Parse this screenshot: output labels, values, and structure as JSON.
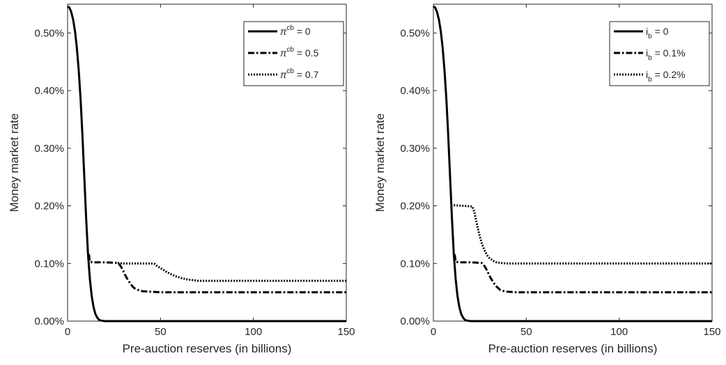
{
  "chart_data": [
    {
      "type": "line",
      "xlabel": "Pre-auction reserves (in billions)",
      "ylabel": "Money market rate",
      "xlim": [
        0,
        150
      ],
      "ylim": [
        0,
        0.55
      ],
      "xticks": [
        "0",
        "50",
        "100",
        "150"
      ],
      "yticks": [
        "0.00%",
        "0.10%",
        "0.20%",
        "0.30%",
        "0.40%",
        "0.50%"
      ],
      "legend_position": "top-right",
      "legend": [
        {
          "base": "π",
          "script": "cb",
          "script_type": "sup",
          "rest": " = 0"
        },
        {
          "base": "π",
          "script": "cb",
          "script_type": "sup",
          "rest": " = 0.5"
        },
        {
          "base": "π",
          "script": "cb",
          "script_type": "sup",
          "rest": " = 0.7"
        }
      ],
      "series": [
        {
          "style": "solid",
          "x": [
            0,
            1,
            2,
            3,
            4,
            5,
            6,
            7,
            8,
            9,
            10,
            11,
            12,
            13,
            14,
            15,
            16,
            17,
            18,
            20,
            25,
            150
          ],
          "y": [
            0.546,
            0.544,
            0.536,
            0.523,
            0.503,
            0.474,
            0.435,
            0.385,
            0.322,
            0.25,
            0.178,
            0.116,
            0.073,
            0.043,
            0.024,
            0.012,
            0.006,
            0.002,
            0.001,
            0,
            0,
            0
          ]
        },
        {
          "style": "dashdot",
          "x": [
            11.5,
            12,
            14,
            20,
            27,
            28,
            29,
            30,
            31,
            32,
            33,
            34,
            35,
            36,
            38,
            40,
            45,
            50,
            150
          ],
          "y": [
            0.116,
            0.103,
            0.102,
            0.102,
            0.101,
            0.098,
            0.093,
            0.087,
            0.08,
            0.074,
            0.069,
            0.064,
            0.06,
            0.057,
            0.054,
            0.052,
            0.051,
            0.05,
            0.05
          ]
        },
        {
          "style": "dotted",
          "x": [
            27,
            30,
            40,
            46,
            47,
            48,
            50,
            52,
            54,
            56,
            58,
            60,
            62,
            65,
            68,
            70,
            150
          ],
          "y": [
            0.101,
            0.1,
            0.1,
            0.1,
            0.099,
            0.096,
            0.092,
            0.088,
            0.084,
            0.081,
            0.078,
            0.076,
            0.074,
            0.072,
            0.071,
            0.07,
            0.07
          ]
        }
      ]
    },
    {
      "type": "line",
      "xlabel": "Pre-auction reserves (in billions)",
      "ylabel": "Money market rate",
      "xlim": [
        0,
        150
      ],
      "ylim": [
        0,
        0.55
      ],
      "xticks": [
        "0",
        "50",
        "100",
        "150"
      ],
      "yticks": [
        "0.00%",
        "0.10%",
        "0.20%",
        "0.30%",
        "0.40%",
        "0.50%"
      ],
      "legend_position": "top-right",
      "legend": [
        {
          "base": "i",
          "script": "b",
          "script_type": "sub",
          "rest": " = 0"
        },
        {
          "base": "i",
          "script": "b",
          "script_type": "sub",
          "rest": " = 0.1%"
        },
        {
          "base": "i",
          "script": "b",
          "script_type": "sub",
          "rest": " = 0.2%"
        }
      ],
      "series": [
        {
          "style": "solid",
          "x": [
            0,
            1,
            2,
            3,
            4,
            5,
            6,
            7,
            8,
            9,
            10,
            11,
            12,
            13,
            14,
            15,
            16,
            17,
            18,
            20,
            25,
            150
          ],
          "y": [
            0.546,
            0.544,
            0.536,
            0.523,
            0.503,
            0.474,
            0.435,
            0.385,
            0.322,
            0.25,
            0.178,
            0.116,
            0.073,
            0.043,
            0.024,
            0.012,
            0.006,
            0.002,
            0.001,
            0,
            0,
            0
          ]
        },
        {
          "style": "dashdot",
          "x": [
            11.5,
            12,
            14,
            20,
            26,
            27,
            28,
            29,
            30,
            31,
            32,
            33,
            34,
            35,
            36,
            38,
            40,
            45,
            150
          ],
          "y": [
            0.116,
            0.103,
            0.102,
            0.102,
            0.101,
            0.098,
            0.093,
            0.087,
            0.08,
            0.074,
            0.069,
            0.064,
            0.06,
            0.057,
            0.054,
            0.052,
            0.051,
            0.05,
            0.05
          ]
        },
        {
          "style": "dotted",
          "x": [
            9.5,
            10,
            12,
            16,
            21,
            22,
            23,
            24,
            25,
            26,
            27,
            28,
            29,
            30,
            32,
            34,
            36,
            40,
            150
          ],
          "y": [
            0.201,
            0.201,
            0.201,
            0.2,
            0.199,
            0.19,
            0.175,
            0.16,
            0.147,
            0.136,
            0.127,
            0.12,
            0.114,
            0.11,
            0.105,
            0.102,
            0.101,
            0.1,
            0.1
          ]
        }
      ]
    }
  ]
}
